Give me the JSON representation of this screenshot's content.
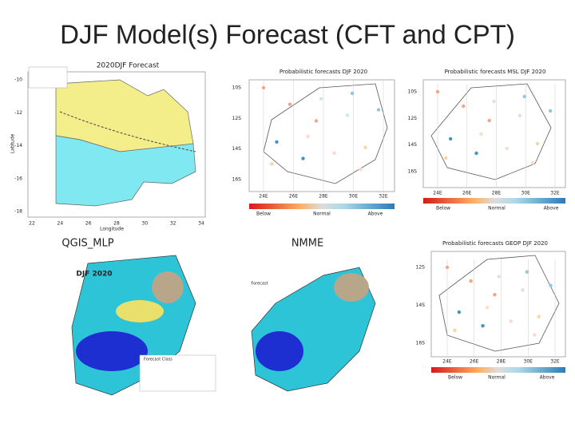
{
  "title": "DJF Model(s) Forecast  (CFT and CPT)",
  "panels": [
    {
      "title": "2020DJF Forecast",
      "caption": "QGIS_MLP",
      "x_label": "Longitude",
      "y_label": "Latitude",
      "x_ticks": [
        "22",
        "24",
        "26",
        "28",
        "30",
        "32",
        "34"
      ],
      "y_ticks": [
        "-10",
        "-12",
        "-14",
        "-16",
        "-18"
      ]
    },
    {
      "title": "Probabilistic forecasts DJF 2020",
      "caption": "NMME",
      "x_ticks": [
        "24E",
        "26E",
        "28E",
        "30E",
        "32E"
      ],
      "y_ticks": [
        "10S",
        "12S",
        "14S",
        "16S"
      ],
      "legend": [
        "Below",
        "Normal",
        "Above"
      ]
    },
    {
      "title": "Probabilistic forecasts MSL DJF 2020",
      "x_ticks": [
        "24E",
        "26E",
        "28E",
        "30E",
        "32E"
      ],
      "y_ticks": [
        "10S",
        "12S",
        "14S",
        "16S"
      ],
      "legend": [
        "Below",
        "Normal",
        "Above"
      ]
    },
    {
      "title": "DJF 2020",
      "legend_title": "Forecast Class"
    },
    {
      "title": "Forecast"
    },
    {
      "title": "Probabilistic forecasts GEOP DJF 2020",
      "x_ticks": [
        "24E",
        "26E",
        "28E",
        "30E",
        "32E"
      ],
      "y_ticks": [
        "12S",
        "14S",
        "16S"
      ],
      "legend": [
        "Below",
        "Normal",
        "Above"
      ]
    }
  ]
}
